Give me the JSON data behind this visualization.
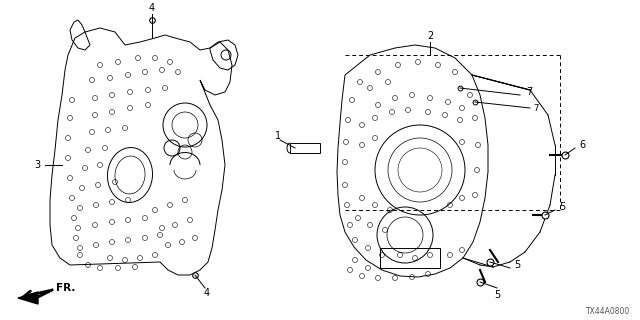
{
  "bg_color": "#ffffff",
  "fig_width": 6.4,
  "fig_height": 3.2,
  "dpi": 100,
  "title_code": "TX44A0800",
  "lw": 0.7,
  "label_fs": 7.0
}
